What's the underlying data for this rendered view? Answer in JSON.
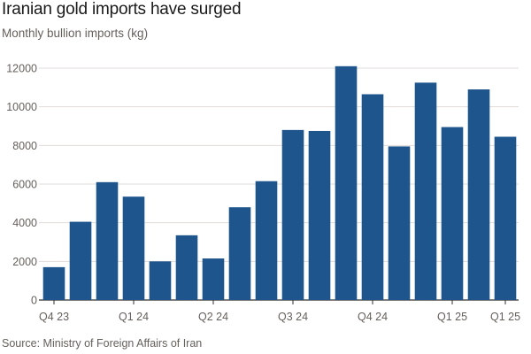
{
  "chart_data": {
    "type": "bar",
    "title": "Iranian gold imports have surged",
    "subtitle": "Monthly bullion imports (kg)",
    "source": "Source: Ministry of Foreign Affairs of Iran",
    "values": [
      1700,
      4050,
      6100,
      5350,
      2000,
      3350,
      2150,
      4800,
      6150,
      8800,
      8750,
      12100,
      10650,
      7950,
      11250,
      8950,
      10900,
      8450
    ],
    "x_tick_labels": [
      {
        "index": 0,
        "label": "Q4 23"
      },
      {
        "index": 3,
        "label": "Q1 24"
      },
      {
        "index": 6,
        "label": "Q2 24"
      },
      {
        "index": 9,
        "label": "Q3 24"
      },
      {
        "index": 12,
        "label": "Q4 24"
      },
      {
        "index": 15,
        "label": "Q1 25"
      },
      {
        "index": 17,
        "label": "Q1 25"
      }
    ],
    "y_ticks": [
      0,
      2000,
      4000,
      6000,
      8000,
      10000,
      12000
    ],
    "ylim": [
      0,
      12000
    ],
    "grid": true,
    "bar_color": "#1e558c"
  }
}
